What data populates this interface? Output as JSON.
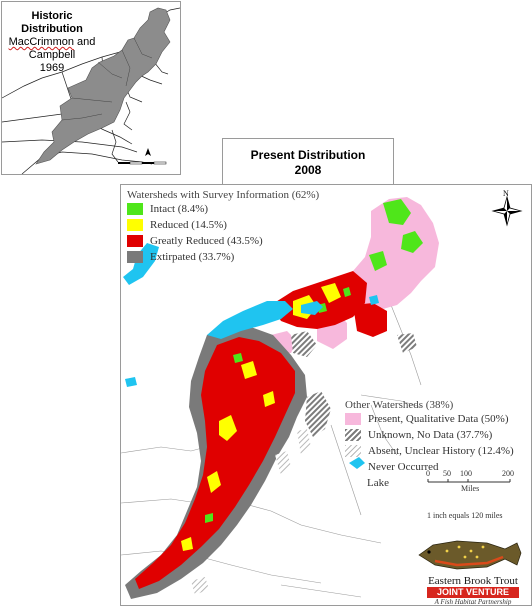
{
  "historic": {
    "title_line1": "Historic Distribution",
    "title_line2_name": "MacCrimmon",
    "title_line2_rest": " and Campbell",
    "title_line3": "1969"
  },
  "present": {
    "title_line1": "Present Distribution",
    "title_line2": "2008"
  },
  "legend": {
    "survey_heading": "Watersheds with Survey Information (62%)",
    "survey_items": [
      {
        "label": "Intact (8.4%)",
        "color": "#4fe61a"
      },
      {
        "label": "Reduced (14.5%)",
        "color": "#ffff00"
      },
      {
        "label": "Greatly Reduced (43.5%)",
        "color": "#e00000"
      },
      {
        "label": "Extirpated (33.7%)",
        "color": "#7a7a7a"
      }
    ],
    "other_heading": "Other Watersheds (38%)",
    "other_items": [
      {
        "label": "Present, Qualitative Data (50%)",
        "style": "pink",
        "color": "#f7b8dc"
      },
      {
        "label": "Unknown, No Data (37.7%)",
        "style": "hatch-dark"
      },
      {
        "label": "Absent, Unclear History (12.4%)",
        "style": "hatch-light"
      },
      {
        "label": "Never Occurred",
        "style": "none"
      }
    ],
    "lake_label": "Lake",
    "lake_color": "#1fc4f0"
  },
  "scale": {
    "ticks": [
      "0",
      "50",
      "100",
      "200"
    ],
    "unit": "Miles",
    "note": "1 inch equals 120 miles"
  },
  "compass": {
    "north": "N"
  },
  "logo": {
    "line1": "Eastern Brook Trout",
    "line2": "JOINT VENTURE",
    "line3": "A Fish Habitat Partnership"
  }
}
